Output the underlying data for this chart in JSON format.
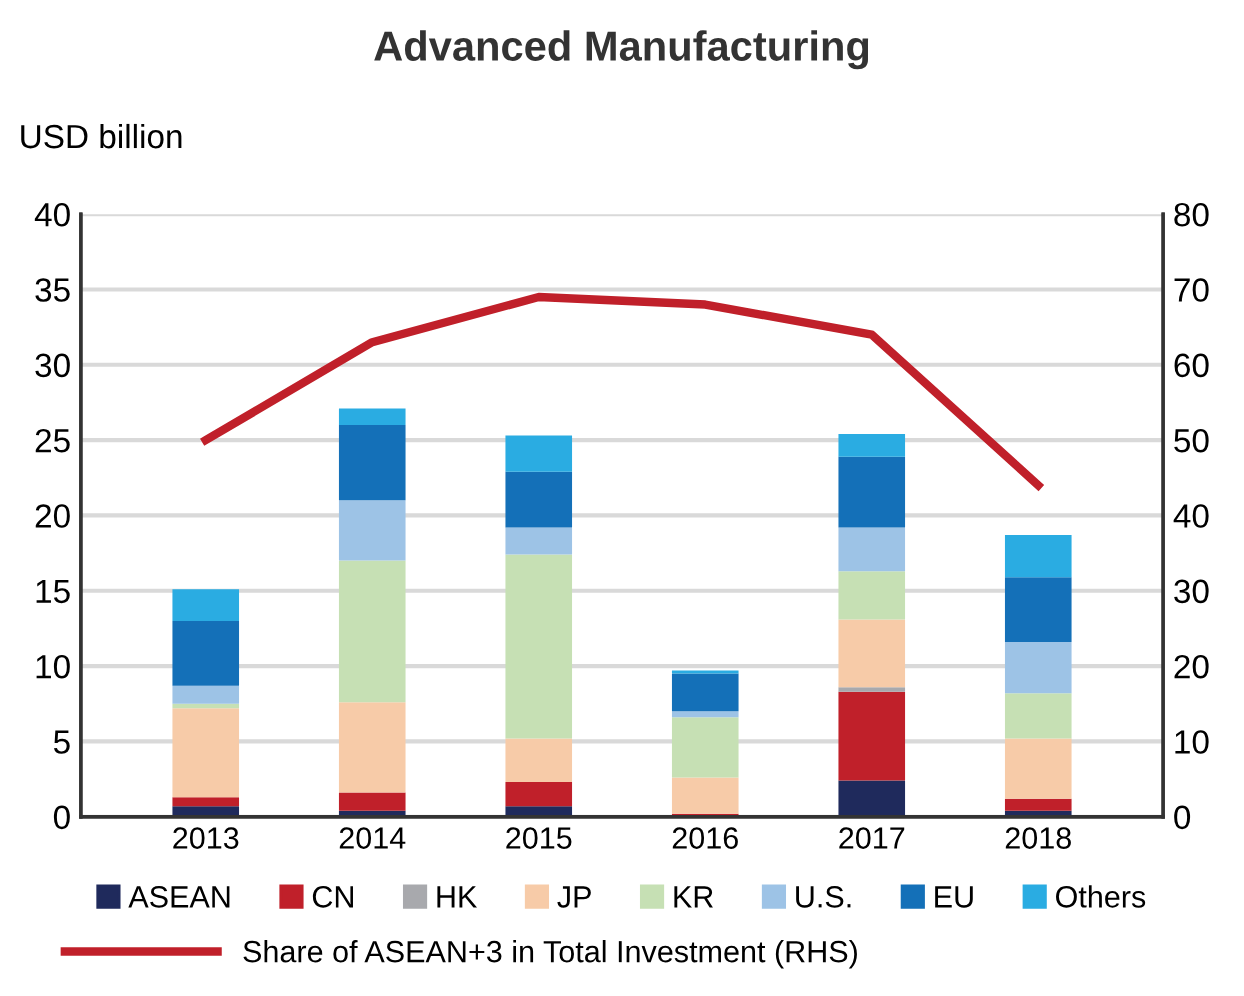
{
  "chart_data": {
    "type": "bar",
    "title": "Advanced Manufacturing",
    "ylabel": "USD billion",
    "categories": [
      "2013",
      "2014",
      "2015",
      "2016",
      "2017",
      "2018"
    ],
    "stacked": true,
    "series": [
      {
        "name": "ASEAN",
        "color": "#1f2a5c",
        "values": [
          0.7,
          0.4,
          0.7,
          0.1,
          2.4,
          0.4
        ]
      },
      {
        "name": "CN",
        "color": "#c0202a",
        "values": [
          0.6,
          1.2,
          1.6,
          0.1,
          5.9,
          0.8
        ]
      },
      {
        "name": "HK",
        "color": "#a8a9ad",
        "values": [
          null,
          null,
          null,
          0.0,
          0.3,
          null
        ]
      },
      {
        "name": "JP",
        "color": "#f7cba8",
        "values": [
          5.9,
          6.0,
          2.9,
          2.4,
          4.5,
          4.0
        ]
      },
      {
        "name": "KR",
        "color": "#c6e0b4",
        "values": [
          0.3,
          9.4,
          12.2,
          4.0,
          3.2,
          3.0
        ]
      },
      {
        "name": "U.S.",
        "color": "#9dc3e6",
        "values": [
          1.2,
          4.0,
          1.8,
          0.4,
          2.9,
          3.4
        ]
      },
      {
        "name": "EU",
        "color": "#1470b8",
        "values": [
          4.3,
          5.0,
          3.7,
          2.5,
          4.7,
          4.3
        ]
      },
      {
        "name": "Others",
        "color": "#2aace2",
        "values": [
          2.1,
          1.1,
          2.4,
          0.2,
          1.5,
          2.8
        ]
      },
      {
        "name": "Share of ASEAN+3 in Total Investment (RHS)",
        "type": "line",
        "axis": "y2",
        "color": "#c0202a",
        "values": [
          50,
          63,
          69,
          68,
          64,
          44
        ]
      }
    ],
    "ylim": [
      0,
      40
    ],
    "yticks": [
      0,
      5,
      10,
      15,
      20,
      25,
      30,
      35,
      40
    ],
    "y2lim": [
      0,
      80
    ],
    "y2ticks": [
      0,
      10,
      20,
      30,
      40,
      50,
      60,
      70,
      80
    ],
    "grid": "y",
    "legend": "bottom",
    "marker": "none",
    "line_style": "solid"
  }
}
